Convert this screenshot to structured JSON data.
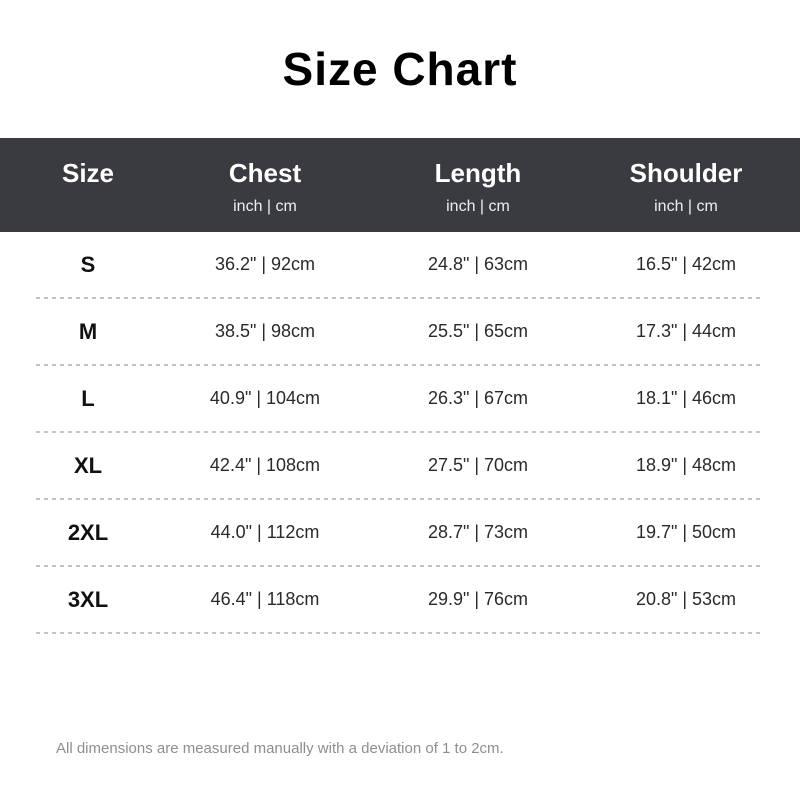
{
  "page": {
    "title": "Size Chart",
    "footnote": "All dimensions are measured manually with a deviation of 1 to 2cm."
  },
  "colors": {
    "header_background": "#3a3b40",
    "header_text": "#ffffff",
    "divider": "#c3c3c3",
    "footnote_text": "#8e8e8e"
  },
  "table": {
    "columns": [
      {
        "label": "Size",
        "unit": ""
      },
      {
        "label": "Chest",
        "unit": "inch | cm"
      },
      {
        "label": "Length",
        "unit": "inch | cm"
      },
      {
        "label": "Shoulder",
        "unit": "inch | cm"
      }
    ],
    "rows": [
      {
        "size": "S",
        "chest": "36.2\" | 92cm",
        "length": "24.8\" | 63cm",
        "shoulder": "16.5\" | 42cm"
      },
      {
        "size": "M",
        "chest": "38.5\" | 98cm",
        "length": "25.5\" | 65cm",
        "shoulder": "17.3\" | 44cm"
      },
      {
        "size": "L",
        "chest": "40.9\" | 104cm",
        "length": "26.3\" | 67cm",
        "shoulder": "18.1\" | 46cm"
      },
      {
        "size": "XL",
        "chest": "42.4\" | 108cm",
        "length": "27.5\" | 70cm",
        "shoulder": "18.9\" | 48cm"
      },
      {
        "size": "2XL",
        "chest": "44.0\" | 112cm",
        "length": "28.7\" | 73cm",
        "shoulder": "19.7\" | 50cm"
      },
      {
        "size": "3XL",
        "chest": "46.4\" | 118cm",
        "length": "29.9\" | 76cm",
        "shoulder": "20.8\" | 53cm"
      }
    ]
  },
  "chart_data": {
    "type": "table",
    "title": "Size Chart",
    "columns": [
      "Size",
      "Chest (inch | cm)",
      "Length (inch | cm)",
      "Shoulder (inch | cm)"
    ],
    "rows": [
      [
        "S",
        "36.2\" | 92cm",
        "24.8\" | 63cm",
        "16.5\" | 42cm"
      ],
      [
        "M",
        "38.5\" | 98cm",
        "25.5\" | 65cm",
        "17.3\" | 44cm"
      ],
      [
        "L",
        "40.9\" | 104cm",
        "26.3\" | 67cm",
        "18.1\" | 46cm"
      ],
      [
        "XL",
        "42.4\" | 108cm",
        "27.5\" | 70cm",
        "18.9\" | 48cm"
      ],
      [
        "2XL",
        "44.0\" | 112cm",
        "28.7\" | 73cm",
        "19.7\" | 50cm"
      ],
      [
        "3XL",
        "46.4\" | 118cm",
        "29.9\" | 76cm",
        "20.8\" | 53cm"
      ]
    ],
    "annotations": [
      "All dimensions are measured manually with a deviation of 1 to 2cm."
    ]
  }
}
